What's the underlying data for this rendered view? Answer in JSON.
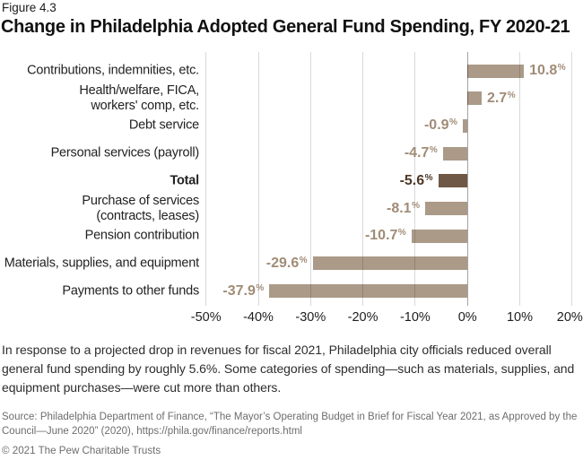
{
  "figure_label": "Figure 4.3",
  "title": "Change in Philadelphia Adopted General Fund Spending, FY 2020-21",
  "chart_data": {
    "type": "bar",
    "orientation": "horizontal",
    "categories": [
      [
        "Contributions, indemnities, etc."
      ],
      [
        "Health/welfare, FICA,",
        "workers' comp, etc."
      ],
      [
        "Debt service"
      ],
      [
        "Personal services (payroll)"
      ],
      [
        "Total"
      ],
      [
        "Purchase of services",
        "(contracts, leases)"
      ],
      [
        "Pension contribution"
      ],
      [
        "Materials, supplies, and equipment"
      ],
      [
        "Payments to other funds"
      ]
    ],
    "values": [
      10.8,
      2.7,
      -0.9,
      -4.7,
      -5.6,
      -8.1,
      -10.7,
      -29.6,
      -37.9
    ],
    "value_strings": [
      "10.8",
      "2.7",
      "-0.9",
      "-4.7",
      "-5.6",
      "-8.1",
      "-10.7",
      "-29.6",
      "-37.9"
    ],
    "percent_sign": "%",
    "emphasis_index": 4,
    "x_ticks": [
      -50,
      -40,
      -30,
      -20,
      -10,
      0,
      10,
      20
    ],
    "x_tick_labels": [
      "-50%",
      "-40%",
      "-30%",
      "-20%",
      "-10%",
      "0%",
      "10%",
      "20%"
    ],
    "xlim": [
      -50,
      20
    ],
    "grid": true,
    "colors": {
      "bar": "#ab9a88",
      "bar_total": "#6f5846",
      "value_label": "#a08c77",
      "value_label_total": "#4e3827"
    }
  },
  "caption_lines": [
    "In response to a projected drop in revenues for fiscal 2021, Philadelphia city officials reduced overall",
    "general fund spending by roughly 5.6%. Some categories of spending—such as materials, supplies, and",
    "equipment purchases—were cut more than others."
  ],
  "source_lines": [
    "Source: Philadelphia Department of Finance, “The Mayor’s Operating Budget in Brief for Fiscal Year 2021, as Approved by the",
    "Council—June 2020” (2020), https://phila.gov/finance/reports.html"
  ],
  "copyright": "© 2021 The Pew Charitable Trusts"
}
